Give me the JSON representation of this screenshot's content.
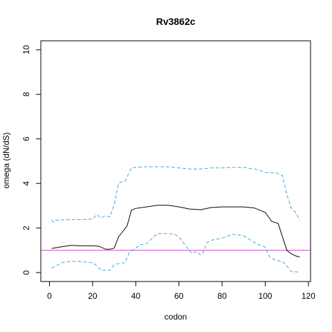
{
  "chart_data": {
    "type": "line",
    "title": "Rv3862c",
    "xlabel": "codon",
    "ylabel": "omega (dN/dS)",
    "xlim": [
      -4,
      121
    ],
    "ylim": [
      -0.4,
      10.4
    ],
    "xticks": [
      0,
      20,
      40,
      60,
      80,
      100,
      120
    ],
    "yticks": [
      0,
      2,
      4,
      6,
      8,
      10
    ],
    "grid": false,
    "reference_line": {
      "y": 1,
      "color": "#cc44cc"
    },
    "series": [
      {
        "color": "#000000",
        "style": "solid",
        "x": [
          1,
          5,
          10,
          15,
          20,
          23,
          26,
          28,
          30,
          32,
          34,
          36,
          38,
          40,
          45,
          50,
          55,
          60,
          65,
          70,
          75,
          80,
          85,
          90,
          95,
          100,
          103,
          106,
          110,
          112,
          114,
          116
        ],
        "y": [
          1.08,
          1.15,
          1.22,
          1.2,
          1.2,
          1.18,
          1.05,
          1.05,
          1.1,
          1.6,
          1.85,
          2.1,
          2.8,
          2.88,
          2.95,
          3.02,
          3.02,
          2.95,
          2.85,
          2.82,
          2.92,
          2.95,
          2.95,
          2.95,
          2.9,
          2.7,
          2.3,
          2.2,
          1.0,
          0.85,
          0.75,
          0.7
        ]
      },
      {
        "color": "#3ea7d8",
        "style": "dashed",
        "x": [
          1,
          2,
          3,
          10,
          15,
          20,
          22,
          24,
          26,
          28,
          30,
          31,
          32,
          33,
          35,
          37,
          38,
          40,
          45,
          50,
          55,
          60,
          65,
          70,
          75,
          80,
          85,
          90,
          95,
          100,
          102,
          105,
          108,
          110,
          112,
          114,
          116
        ],
        "y": [
          2.35,
          2.25,
          2.35,
          2.38,
          2.38,
          2.4,
          2.6,
          2.45,
          2.55,
          2.5,
          3.05,
          3.5,
          4.0,
          4.05,
          4.1,
          4.5,
          4.7,
          4.72,
          4.75,
          4.75,
          4.75,
          4.7,
          4.65,
          4.65,
          4.7,
          4.7,
          4.72,
          4.72,
          4.65,
          4.5,
          4.48,
          4.48,
          4.35,
          3.5,
          2.9,
          2.7,
          2.35
        ]
      },
      {
        "color": "#3ea7d8",
        "style": "dashed",
        "x": [
          1,
          3,
          6,
          10,
          15,
          18,
          20,
          22,
          24,
          28,
          30,
          32,
          35,
          37,
          40,
          42,
          45,
          50,
          55,
          58,
          60,
          62,
          64,
          66,
          68,
          70,
          71,
          73,
          75,
          80,
          85,
          90,
          95,
          98,
          100,
          102,
          105,
          108,
          110,
          112,
          116
        ],
        "y": [
          0.2,
          0.3,
          0.45,
          0.5,
          0.5,
          0.45,
          0.45,
          0.3,
          0.1,
          0.1,
          0.35,
          0.4,
          0.45,
          0.9,
          1.1,
          1.25,
          1.3,
          1.75,
          1.75,
          1.72,
          1.6,
          1.35,
          1.1,
          0.85,
          0.95,
          0.8,
          0.85,
          1.35,
          1.45,
          1.55,
          1.72,
          1.65,
          1.35,
          1.2,
          1.15,
          0.7,
          0.55,
          0.5,
          0.3,
          0.05,
          0.02
        ]
      }
    ]
  }
}
